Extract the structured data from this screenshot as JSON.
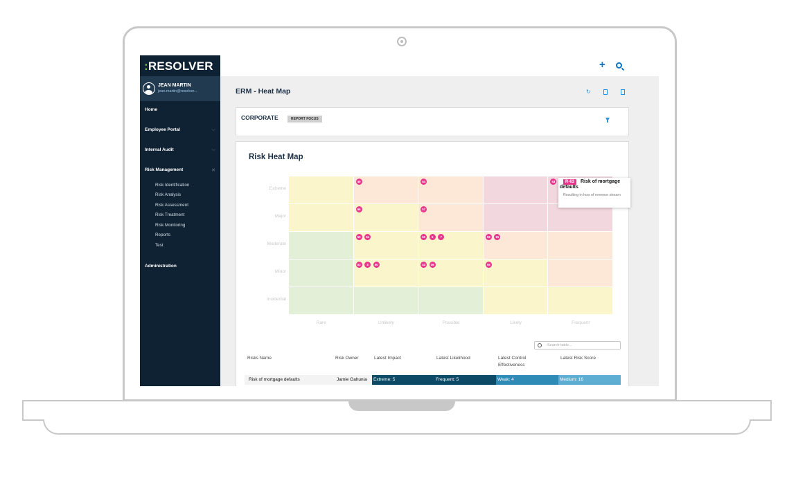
{
  "app": {
    "logo_colon": ":",
    "logo_text": "RESOLVER"
  },
  "user": {
    "name": "JEAN MARTIN",
    "email": "jean.martin@resolver..."
  },
  "nav": [
    {
      "label": "Home",
      "chevron": ""
    },
    {
      "label": "Employee Portal",
      "chevron": "⌵"
    },
    {
      "label": "Internal Audit",
      "chevron": "⌵"
    },
    {
      "label": "Risk Management",
      "chevron": "✕"
    },
    {
      "label": "Administration",
      "chevron": ""
    }
  ],
  "risk_subnav": [
    "Risk Identification",
    "Risk Analysis",
    "Risk Assessment",
    "Risk Treatment",
    "Risk Monitoring",
    "Reports",
    "Test"
  ],
  "page": {
    "title": "ERM - Heat Map"
  },
  "focus": {
    "title": "CORPORATE",
    "badge": "REPORT FOCUS"
  },
  "heatmap": {
    "title": "Risk Heat Map",
    "rows": [
      "Extreme",
      "Major",
      "Moderate",
      "Minor",
      "Incidental"
    ],
    "columns": [
      "Rare",
      "Unlikely",
      "Possible",
      "Likely",
      "Frequent"
    ],
    "colors": {
      "green": "#e3efd6",
      "yellow": "#fbf5cc",
      "orange": "#fde8d8",
      "red": "#f3d7de"
    },
    "matrix": [
      [
        "yellow",
        "orange",
        "orange",
        "red",
        "red"
      ],
      [
        "yellow",
        "yellow",
        "orange",
        "red",
        "red"
      ],
      [
        "green",
        "yellow",
        "yellow",
        "orange",
        "orange"
      ],
      [
        "green",
        "yellow",
        "yellow",
        "yellow",
        "orange"
      ],
      [
        "green",
        "green",
        "green",
        "yellow",
        "yellow"
      ]
    ],
    "dots": [
      {
        "row": 0,
        "col": 1,
        "labels": [
          "49"
        ]
      },
      {
        "row": 0,
        "col": 2,
        "labels": [
          "54"
        ]
      },
      {
        "row": 0,
        "col": 4,
        "labels": [
          "63"
        ]
      },
      {
        "row": 1,
        "col": 1,
        "labels": [
          "66"
        ]
      },
      {
        "row": 1,
        "col": 2,
        "labels": [
          "57"
        ]
      },
      {
        "row": 2,
        "col": 1,
        "labels": [
          "59",
          "64"
        ]
      },
      {
        "row": 2,
        "col": 2,
        "labels": [
          "62",
          "5",
          "7"
        ]
      },
      {
        "row": 2,
        "col": 3,
        "labels": [
          "58",
          "15"
        ]
      },
      {
        "row": 3,
        "col": 1,
        "labels": [
          "53",
          "4",
          "50"
        ]
      },
      {
        "row": 3,
        "col": 2,
        "labels": [
          "43",
          "46"
        ]
      },
      {
        "row": 3,
        "col": 3,
        "labels": [
          "55"
        ]
      }
    ],
    "tooltip": {
      "id": "R-63",
      "title": "Risk of mortgage defaults",
      "description": "Resulting in loss of revenue stream"
    }
  },
  "table": {
    "search_placeholder": "Search table...",
    "headers": [
      "Risks Name",
      "Risk Owner",
      "Latest Impact",
      "Latest Likelihood",
      "Latest Control Effectiveness",
      "Latest Risk Score"
    ],
    "rows": [
      {
        "name": "Risk of mortgage defaults",
        "owner": "Jamie Gahunia",
        "impact": "Extreme: 5",
        "likelihood": "Frequent: 5",
        "control": "Weak: 4",
        "score": "Medium: 16"
      }
    ],
    "cell_colors": [
      "#0d4a66",
      "#0d4a66",
      "#2d8bb5",
      "#5eadd2"
    ]
  }
}
